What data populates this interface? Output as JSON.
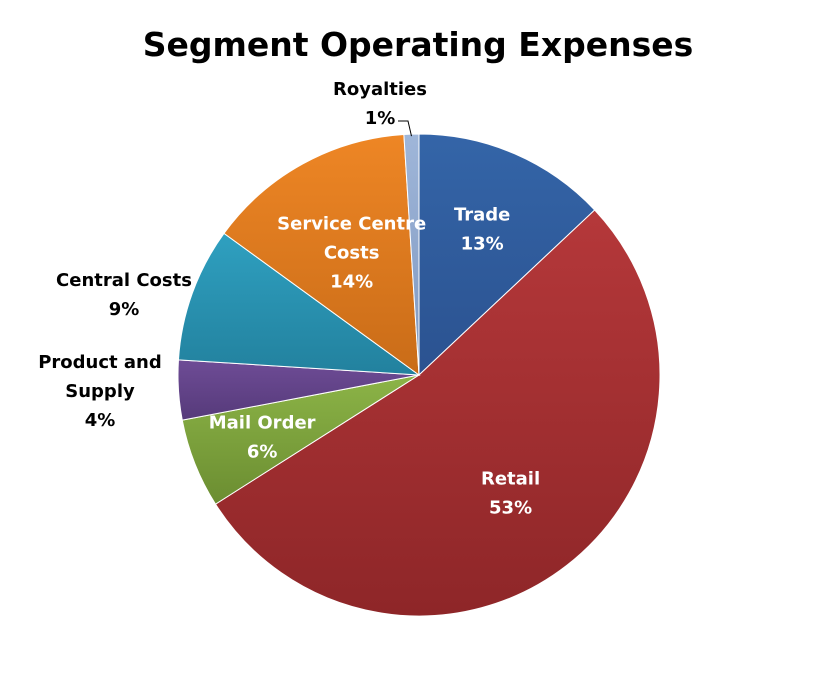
{
  "chart_data": {
    "type": "pie",
    "title": "Segment Operating Expenses",
    "start_angle_deg": 0,
    "direction": "clockwise",
    "slices": [
      {
        "name": "Trade",
        "label_lines": [
          "Trade"
        ],
        "value_label": "13%",
        "value": 13,
        "color": "#3465a8",
        "color_dark": "#2b5290",
        "label_pos": "inside"
      },
      {
        "name": "Retail",
        "label_lines": [
          "Retail"
        ],
        "value_label": "53%",
        "value": 53,
        "color": "#b5383a",
        "color_dark": "#8e2628",
        "label_pos": "inside"
      },
      {
        "name": "Mail Order",
        "label_lines": [
          "Mail Order"
        ],
        "value_label": "6%",
        "value": 6,
        "color": "#8cb447",
        "color_dark": "#6b8d31",
        "label_pos": "inside"
      },
      {
        "name": "Product and Supply",
        "label_lines": [
          "Product and",
          "Supply"
        ],
        "value_label": "4%",
        "value": 4,
        "color": "#6e4c96",
        "color_dark": "#563a7a",
        "label_pos": "outside"
      },
      {
        "name": "Central Costs",
        "label_lines": [
          "Central Costs"
        ],
        "value_label": "9%",
        "value": 9,
        "color": "#2fa0c0",
        "color_dark": "#22819e",
        "label_pos": "outside"
      },
      {
        "name": "Service Centre Costs",
        "label_lines": [
          "Service Centre",
          "Costs"
        ],
        "value_label": "14%",
        "value": 14,
        "color": "#ee8625",
        "color_dark": "#c96c18",
        "label_pos": "inside"
      },
      {
        "name": "Royalties",
        "label_lines": [
          "Royalties"
        ],
        "value_label": "1%",
        "value": 1,
        "color": "#9fb6d9",
        "color_dark": "#7f98c0",
        "label_pos": "outside-leader"
      }
    ]
  }
}
